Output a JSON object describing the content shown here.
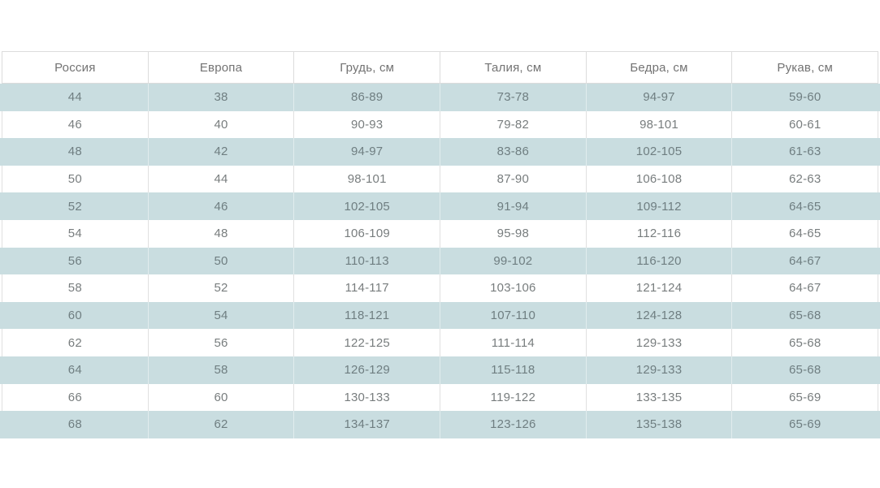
{
  "page": {
    "background": "#ffffff"
  },
  "table": {
    "columns": [
      "Россия",
      "Европа",
      "Грудь, см",
      "Талия, см",
      "Бедра, см",
      "Рукав, см"
    ],
    "rows": [
      [
        "44",
        "38",
        "86-89",
        "73-78",
        "94-97",
        "59-60"
      ],
      [
        "46",
        "40",
        "90-93",
        "79-82",
        "98-101",
        "60-61"
      ],
      [
        "48",
        "42",
        "94-97",
        "83-86",
        "102-105",
        "61-63"
      ],
      [
        "50",
        "44",
        "98-101",
        "87-90",
        "106-108",
        "62-63"
      ],
      [
        "52",
        "46",
        "102-105",
        "91-94",
        "109-112",
        "64-65"
      ],
      [
        "54",
        "48",
        "106-109",
        "95-98",
        "112-116",
        "64-65"
      ],
      [
        "56",
        "50",
        "110-113",
        "99-102",
        "116-120",
        "64-67"
      ],
      [
        "58",
        "52",
        "114-117",
        "103-106",
        "121-124",
        "64-67"
      ],
      [
        "60",
        "54",
        "118-121",
        "107-110",
        "124-128",
        "65-68"
      ],
      [
        "62",
        "56",
        "122-125",
        "111-114",
        "129-133",
        "65-68"
      ],
      [
        "64",
        "58",
        "126-129",
        "115-118",
        "129-133",
        "65-68"
      ],
      [
        "66",
        "60",
        "130-133",
        "119-122",
        "133-135",
        "65-69"
      ],
      [
        "68",
        "62",
        "134-137",
        "123-126",
        "135-138",
        "65-69"
      ]
    ],
    "colors": {
      "stripe_background": "#c9dde0",
      "border": "#e0e0e0",
      "header_text": "#737373",
      "cell_text": "#787d7e"
    }
  }
}
